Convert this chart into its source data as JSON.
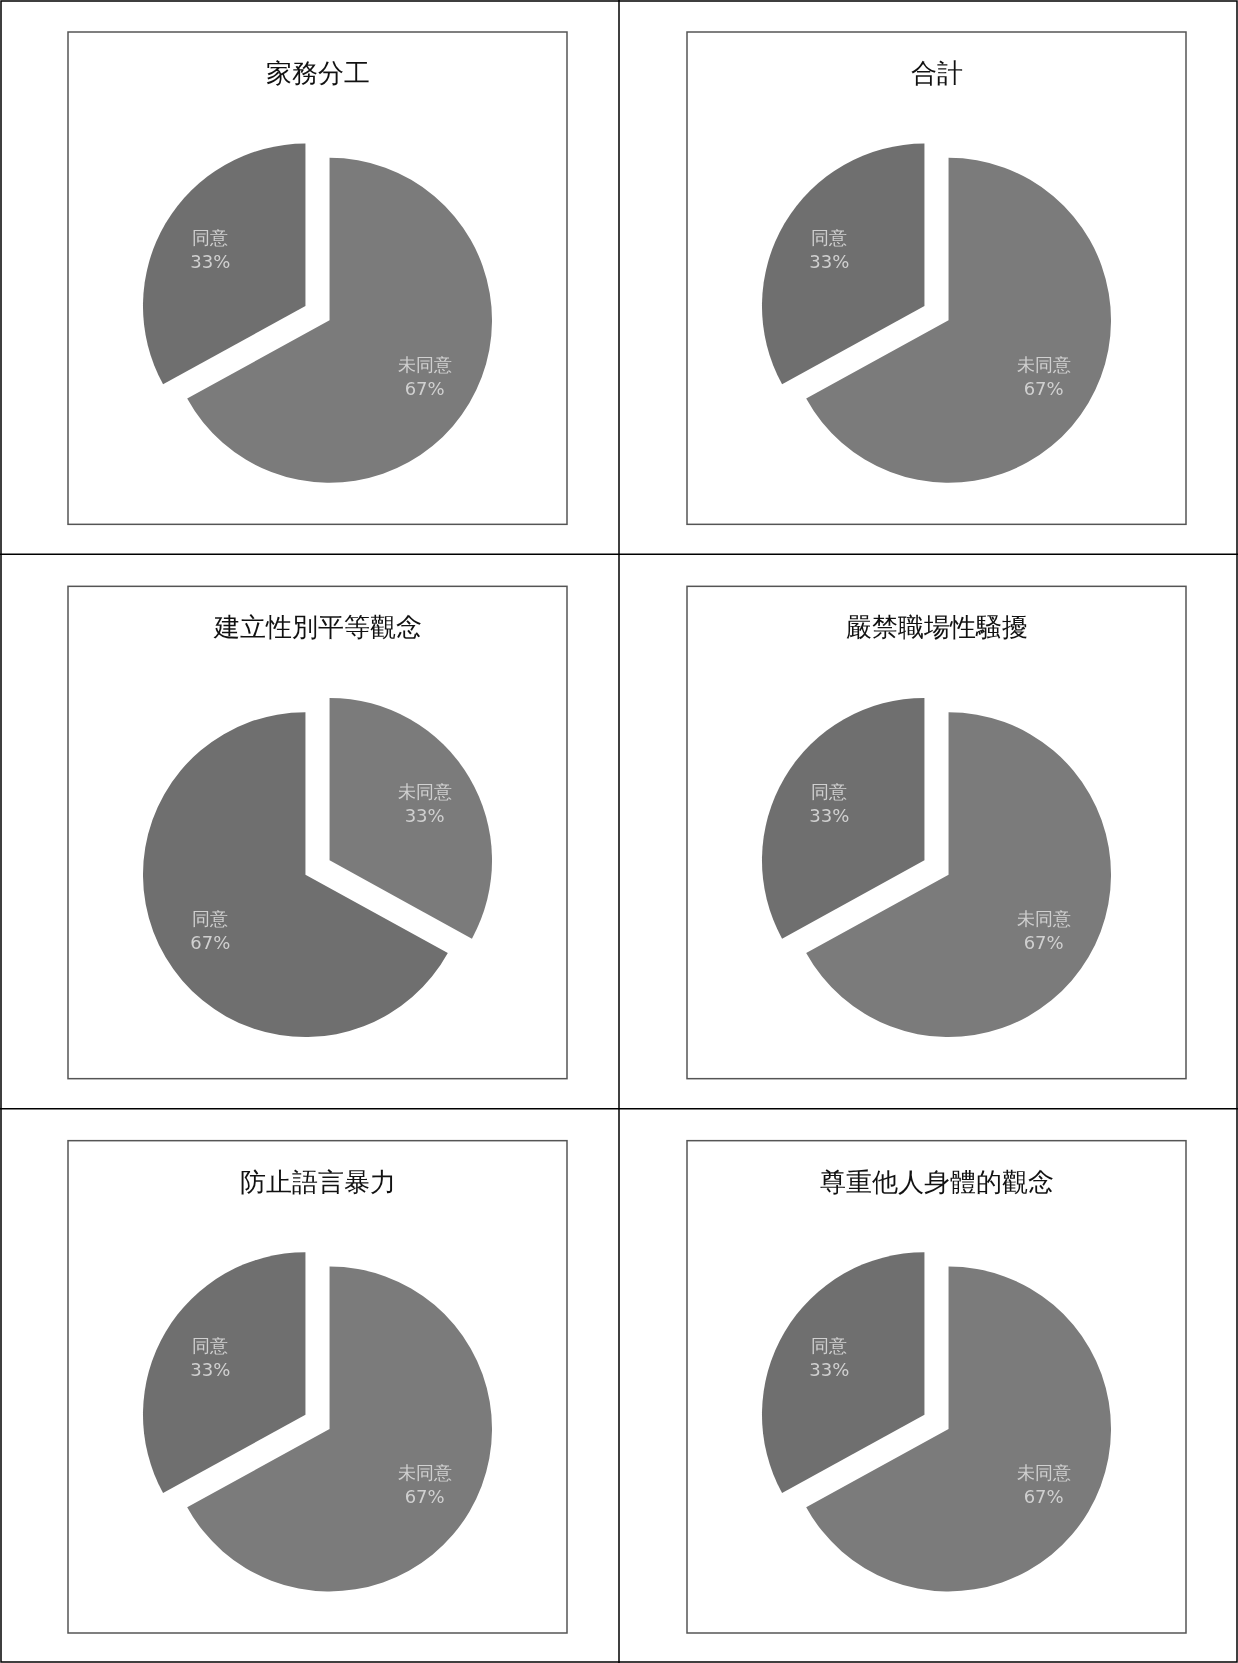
{
  "chart_data": [
    {
      "type": "pie",
      "title": "家務分工",
      "categories": [
        "未同意",
        "同意"
      ],
      "values": [
        67,
        33
      ],
      "colors": [
        "#7b7b7b",
        "#6f6f6f"
      ],
      "value_labels": [
        "67%",
        "33%"
      ]
    },
    {
      "type": "pie",
      "title": "合計",
      "categories": [
        "未同意",
        "同意"
      ],
      "values": [
        67,
        33
      ],
      "colors": [
        "#7b7b7b",
        "#6f6f6f"
      ],
      "value_labels": [
        "67%",
        "33%"
      ]
    },
    {
      "type": "pie",
      "title": "建立性別平等觀念",
      "categories": [
        "未同意",
        "同意"
      ],
      "values": [
        33,
        67
      ],
      "colors": [
        "#7b7b7b",
        "#6f6f6f"
      ],
      "value_labels": [
        "33%",
        "67%"
      ]
    },
    {
      "type": "pie",
      "title": "嚴禁職場性騷擾",
      "categories": [
        "未同意",
        "同意"
      ],
      "values": [
        67,
        33
      ],
      "colors": [
        "#7b7b7b",
        "#6f6f6f"
      ],
      "value_labels": [
        "67%",
        "33%"
      ]
    },
    {
      "type": "pie",
      "title": "防止語言暴力",
      "categories": [
        "未同意",
        "同意"
      ],
      "values": [
        67,
        33
      ],
      "colors": [
        "#7b7b7b",
        "#6f6f6f"
      ],
      "value_labels": [
        "67%",
        "33%"
      ]
    },
    {
      "type": "pie",
      "title": "尊重他人身體的觀念",
      "categories": [
        "未同意",
        "同意"
      ],
      "values": [
        67,
        33
      ],
      "colors": [
        "#7b7b7b",
        "#6f6f6f"
      ],
      "value_labels": [
        "67%",
        "33%"
      ]
    }
  ]
}
